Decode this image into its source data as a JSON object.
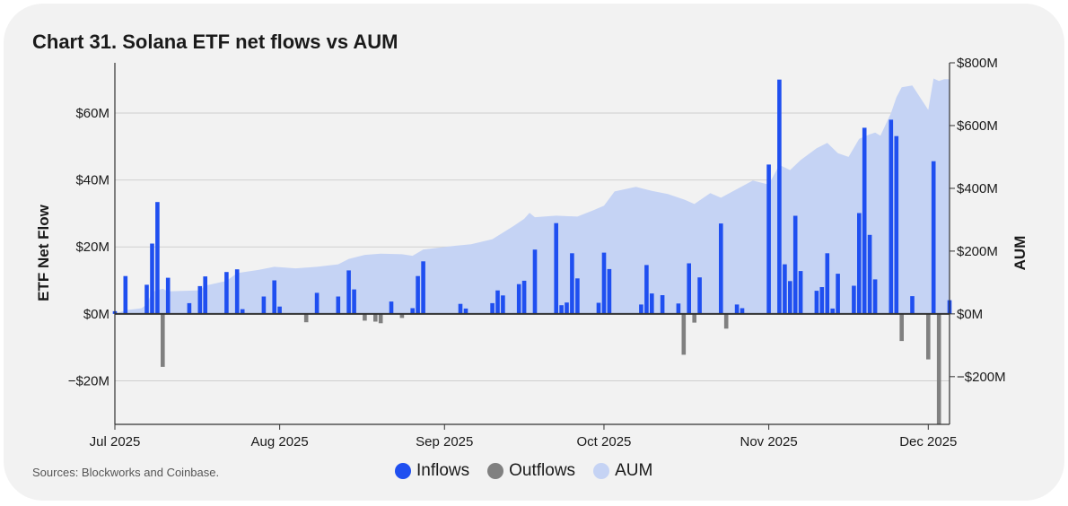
{
  "colors": {
    "inflow": "#1f4ff0",
    "outflow": "#808080",
    "aum": "#c5d3f4",
    "grid": "#cfcfcf",
    "axis": "#333333"
  },
  "chart_data": {
    "type": "bar",
    "title": "Chart 31. Solana ETF net flows vs AUM",
    "source": "Sources: Blockworks and Coinbase.",
    "ylabel": "ETF Net Flow",
    "y2label": "AUM",
    "ylim": [
      -33,
      75
    ],
    "y2lim": [
      -352.0,
      800
    ],
    "yticks": [
      -20,
      0,
      20,
      40,
      60
    ],
    "ytick_labels": [
      "−$20M",
      "$0M",
      "$20M",
      "$40M",
      "$60M"
    ],
    "y2ticks": [
      -200,
      0,
      200,
      400,
      600,
      800
    ],
    "y2tick_labels": [
      "−$200M",
      "$0M",
      "$200M",
      "$400M",
      "$600M",
      "$800M"
    ],
    "xlim": [
      "2025-07-01",
      "2025-12-05"
    ],
    "xticks": [
      "2025-07-01",
      "2025-08-01",
      "2025-09-01",
      "2025-10-01",
      "2025-11-01",
      "2025-12-01"
    ],
    "xtick_labels": [
      "Jul 2025",
      "Aug 2025",
      "Sep 2025",
      "Oct 2025",
      "Nov 2025",
      "Dec 2025"
    ],
    "grid": true,
    "legend": {
      "position": "bottom-center",
      "entries": [
        "Inflows",
        "Outflows",
        "AUM"
      ]
    },
    "series": [
      {
        "name": "Inflows",
        "points": [
          [
            "2025-07-01",
            0.8
          ],
          [
            "2025-07-03",
            11.3
          ],
          [
            "2025-07-07",
            8.7
          ],
          [
            "2025-07-08",
            21
          ],
          [
            "2025-07-09",
            33.4
          ],
          [
            "2025-07-11",
            10.8
          ],
          [
            "2025-07-15",
            3.2
          ],
          [
            "2025-07-17",
            8.3
          ],
          [
            "2025-07-18",
            11.2
          ],
          [
            "2025-07-22",
            12.5
          ],
          [
            "2025-07-24",
            13.3
          ],
          [
            "2025-07-25",
            1.4
          ],
          [
            "2025-07-29",
            5.2
          ],
          [
            "2025-07-31",
            10
          ],
          [
            "2025-08-01",
            2.2
          ],
          [
            "2025-08-08",
            6.3
          ],
          [
            "2025-08-12",
            5.2
          ],
          [
            "2025-08-14",
            13
          ],
          [
            "2025-08-15",
            7.3
          ],
          [
            "2025-08-22",
            3.7
          ],
          [
            "2025-08-26",
            1.7
          ],
          [
            "2025-08-27",
            11.3
          ],
          [
            "2025-08-28",
            15.7
          ],
          [
            "2025-09-04",
            3
          ],
          [
            "2025-09-05",
            1.6
          ],
          [
            "2025-09-10",
            3.2
          ],
          [
            "2025-09-11",
            7
          ],
          [
            "2025-09-12",
            5.5
          ],
          [
            "2025-09-15",
            8.9
          ],
          [
            "2025-09-16",
            9.9
          ],
          [
            "2025-09-18",
            19.2
          ],
          [
            "2025-09-22",
            27.1
          ],
          [
            "2025-09-23",
            2.6
          ],
          [
            "2025-09-24",
            3.4
          ],
          [
            "2025-09-25",
            18.1
          ],
          [
            "2025-09-26",
            10.6
          ],
          [
            "2025-09-30",
            3.3
          ],
          [
            "2025-10-01",
            18.3
          ],
          [
            "2025-10-02",
            13.4
          ],
          [
            "2025-10-08",
            2.8
          ],
          [
            "2025-10-09",
            14.6
          ],
          [
            "2025-10-10",
            6.1
          ],
          [
            "2025-10-12",
            5.6
          ],
          [
            "2025-10-15",
            3.1
          ],
          [
            "2025-10-17",
            15.1
          ],
          [
            "2025-10-19",
            10.9
          ],
          [
            "2025-10-23",
            27
          ],
          [
            "2025-10-26",
            2.8
          ],
          [
            "2025-10-27",
            1.7
          ],
          [
            "2025-11-01",
            44.6
          ],
          [
            "2025-11-03",
            70
          ],
          [
            "2025-11-04",
            14.8
          ],
          [
            "2025-11-05",
            9.8
          ],
          [
            "2025-11-06",
            29.3
          ],
          [
            "2025-11-07",
            12.8
          ],
          [
            "2025-11-10",
            6.9
          ],
          [
            "2025-11-11",
            8
          ],
          [
            "2025-11-12",
            18.1
          ],
          [
            "2025-11-13",
            1.6
          ],
          [
            "2025-11-14",
            12
          ],
          [
            "2025-11-17",
            8.4
          ],
          [
            "2025-11-18",
            30.1
          ],
          [
            "2025-11-19",
            55.6
          ],
          [
            "2025-11-20",
            23.6
          ],
          [
            "2025-11-21",
            10.3
          ],
          [
            "2025-11-24",
            58
          ],
          [
            "2025-11-25",
            53.1
          ],
          [
            "2025-11-28",
            5.3
          ],
          [
            "2025-12-02",
            45.6
          ],
          [
            "2025-12-05",
            4.1
          ]
        ]
      },
      {
        "name": "Outflows",
        "points": [
          [
            "2025-07-10",
            -15.8
          ],
          [
            "2025-08-06",
            -2.5
          ],
          [
            "2025-08-17",
            -2
          ],
          [
            "2025-08-19",
            -2.3
          ],
          [
            "2025-08-20",
            -2.8
          ],
          [
            "2025-08-24",
            -1.2
          ],
          [
            "2025-10-16",
            -12.2
          ],
          [
            "2025-10-18",
            -2.6
          ],
          [
            "2025-10-24",
            -4.4
          ],
          [
            "2025-11-26",
            -8.1
          ],
          [
            "2025-12-01",
            -13.6
          ],
          [
            "2025-12-03",
            -33
          ]
        ]
      },
      {
        "name": "AUM",
        "points": [
          [
            "2025-07-01",
            0
          ],
          [
            "2025-07-03",
            12
          ],
          [
            "2025-07-06",
            18
          ],
          [
            "2025-07-07",
            30
          ],
          [
            "2025-07-08",
            70
          ],
          [
            "2025-07-10",
            80
          ],
          [
            "2025-07-11",
            72
          ],
          [
            "2025-07-17",
            75
          ],
          [
            "2025-07-18",
            90
          ],
          [
            "2025-07-22",
            105
          ],
          [
            "2025-07-24",
            130
          ],
          [
            "2025-07-28",
            140
          ],
          [
            "2025-07-31",
            150
          ],
          [
            "2025-08-04",
            145
          ],
          [
            "2025-08-08",
            150
          ],
          [
            "2025-08-12",
            158
          ],
          [
            "2025-08-14",
            175
          ],
          [
            "2025-08-17",
            188
          ],
          [
            "2025-08-20",
            192
          ],
          [
            "2025-08-24",
            190
          ],
          [
            "2025-08-26",
            185
          ],
          [
            "2025-08-28",
            205
          ],
          [
            "2025-09-02",
            215
          ],
          [
            "2025-09-06",
            222
          ],
          [
            "2025-09-10",
            238
          ],
          [
            "2025-09-14",
            280
          ],
          [
            "2025-09-16",
            303
          ],
          [
            "2025-09-17",
            322
          ],
          [
            "2025-09-18",
            308
          ],
          [
            "2025-09-22",
            313
          ],
          [
            "2025-09-26",
            310
          ],
          [
            "2025-09-29",
            330
          ],
          [
            "2025-10-01",
            345
          ],
          [
            "2025-10-03",
            390
          ],
          [
            "2025-10-07",
            405
          ],
          [
            "2025-10-10",
            392
          ],
          [
            "2025-10-13",
            382
          ],
          [
            "2025-10-16",
            365
          ],
          [
            "2025-10-18",
            350
          ],
          [
            "2025-10-21",
            385
          ],
          [
            "2025-10-23",
            370
          ],
          [
            "2025-10-29",
            425
          ],
          [
            "2025-11-01",
            412
          ],
          [
            "2025-11-03",
            475
          ],
          [
            "2025-11-05",
            458
          ],
          [
            "2025-11-07",
            490
          ],
          [
            "2025-11-10",
            528
          ],
          [
            "2025-11-12",
            545
          ],
          [
            "2025-11-14",
            512
          ],
          [
            "2025-11-16",
            500
          ],
          [
            "2025-11-18",
            558
          ],
          [
            "2025-11-20",
            572
          ],
          [
            "2025-11-21",
            578
          ],
          [
            "2025-11-22",
            568
          ],
          [
            "2025-11-24",
            640
          ],
          [
            "2025-11-25",
            690
          ],
          [
            "2025-11-26",
            722
          ],
          [
            "2025-11-28",
            728
          ],
          [
            "2025-12-01",
            650
          ],
          [
            "2025-12-02",
            750
          ],
          [
            "2025-12-03",
            742
          ],
          [
            "2025-12-04",
            748
          ],
          [
            "2025-12-05",
            748
          ]
        ]
      }
    ]
  }
}
